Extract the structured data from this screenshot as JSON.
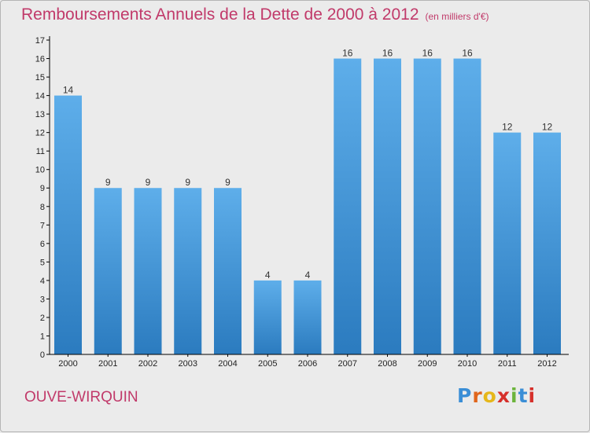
{
  "header": {
    "title": "Remboursements Annuels de la Dette de 2000 à 2012",
    "unit": "(en milliers d'€)"
  },
  "location": "OUVE-WIRQUIN",
  "brand": {
    "name": "Proxiti",
    "letters": [
      "P",
      "r",
      "o",
      "x",
      "i",
      "t",
      "i"
    ],
    "letter_colors": [
      "#3a8ed6",
      "#e0661c",
      "#e6b71a",
      "#d6302b",
      "#6cb43c",
      "#3a8ed6",
      "#d6302b"
    ]
  },
  "colors": {
    "bar_top": "#5eaeea",
    "bar_bottom": "#2b7bbf",
    "title": "#c13a6a",
    "axis": "#000000"
  },
  "chart_data": {
    "type": "bar",
    "categories": [
      "2000",
      "2001",
      "2002",
      "2003",
      "2004",
      "2005",
      "2006",
      "2007",
      "2008",
      "2009",
      "2010",
      "2011",
      "2012"
    ],
    "values": [
      14,
      9,
      9,
      9,
      9,
      4,
      4,
      16,
      16,
      16,
      16,
      12,
      12
    ],
    "ylim": [
      0,
      17
    ],
    "yticks": [
      0,
      1,
      2,
      3,
      4,
      5,
      6,
      7,
      8,
      9,
      10,
      11,
      12,
      13,
      14,
      15,
      16,
      17
    ],
    "data_labels": true,
    "grid": false
  }
}
